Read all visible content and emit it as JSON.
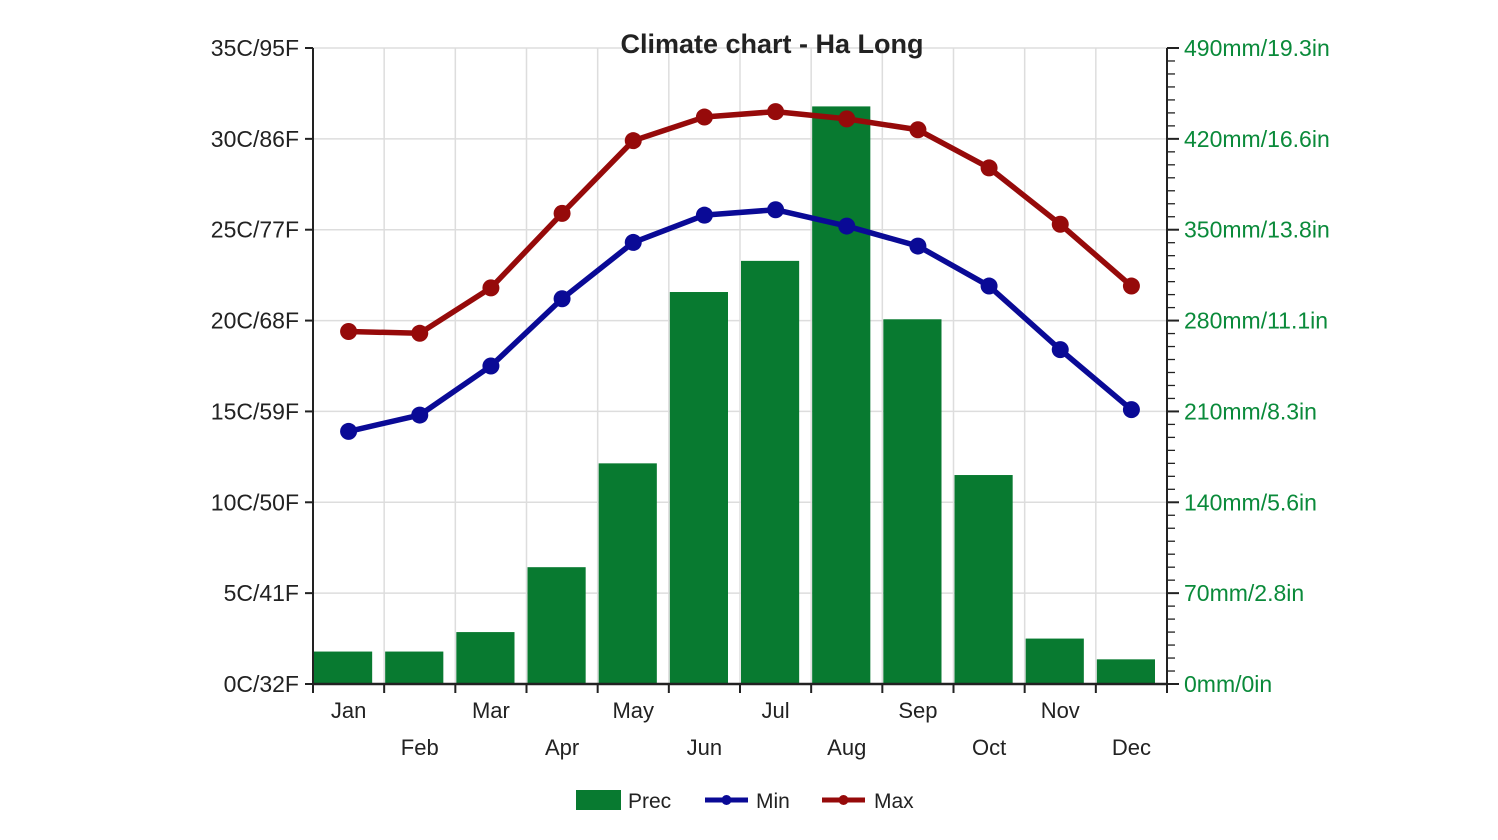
{
  "chart_data": {
    "type": "bar",
    "title": "Climate chart - Ha Long",
    "categories": [
      "Jan",
      "Feb",
      "Mar",
      "Apr",
      "May",
      "Jun",
      "Jul",
      "Aug",
      "Sep",
      "Oct",
      "Nov",
      "Dec"
    ],
    "left_axis": {
      "ylim": [
        0,
        35
      ],
      "ticks": [
        {
          "value": 0,
          "label": "0C/32F"
        },
        {
          "value": 5,
          "label": "5C/41F"
        },
        {
          "value": 10,
          "label": "10C/50F"
        },
        {
          "value": 15,
          "label": "15C/59F"
        },
        {
          "value": 20,
          "label": "20C/68F"
        },
        {
          "value": 25,
          "label": "25C/77F"
        },
        {
          "value": 30,
          "label": "30C/86F"
        },
        {
          "value": 35,
          "label": "35C/95F"
        }
      ]
    },
    "right_axis": {
      "ylim": [
        0,
        490
      ],
      "ticks": [
        {
          "value": 0,
          "label": "0mm/0in"
        },
        {
          "value": 70,
          "label": "70mm/2.8in"
        },
        {
          "value": 140,
          "label": "140mm/5.6in"
        },
        {
          "value": 210,
          "label": "210mm/8.3in"
        },
        {
          "value": 280,
          "label": "280mm/11.1in"
        },
        {
          "value": 350,
          "label": "350mm/13.8in"
        },
        {
          "value": 420,
          "label": "420mm/16.6in"
        },
        {
          "value": 490,
          "label": "490mm/19.3in"
        }
      ]
    },
    "grid": true,
    "legend_position": "bottom-center",
    "series": [
      {
        "name": "Prec",
        "type": "bar",
        "axis": "right",
        "color": "#087a30",
        "values": [
          25,
          25,
          40,
          90,
          170,
          302,
          326,
          445,
          281,
          161,
          35,
          19
        ]
      },
      {
        "name": "Min",
        "type": "line",
        "axis": "left",
        "color": "#0a0a96",
        "values": [
          13.9,
          14.8,
          17.5,
          21.2,
          24.3,
          25.8,
          26.1,
          25.2,
          24.1,
          21.9,
          18.4,
          15.1
        ]
      },
      {
        "name": "Max",
        "type": "line",
        "axis": "left",
        "color": "#960a0a",
        "values": [
          19.4,
          19.3,
          21.8,
          25.9,
          29.9,
          31.2,
          31.5,
          31.1,
          30.5,
          28.4,
          25.3,
          21.9
        ]
      }
    ]
  }
}
